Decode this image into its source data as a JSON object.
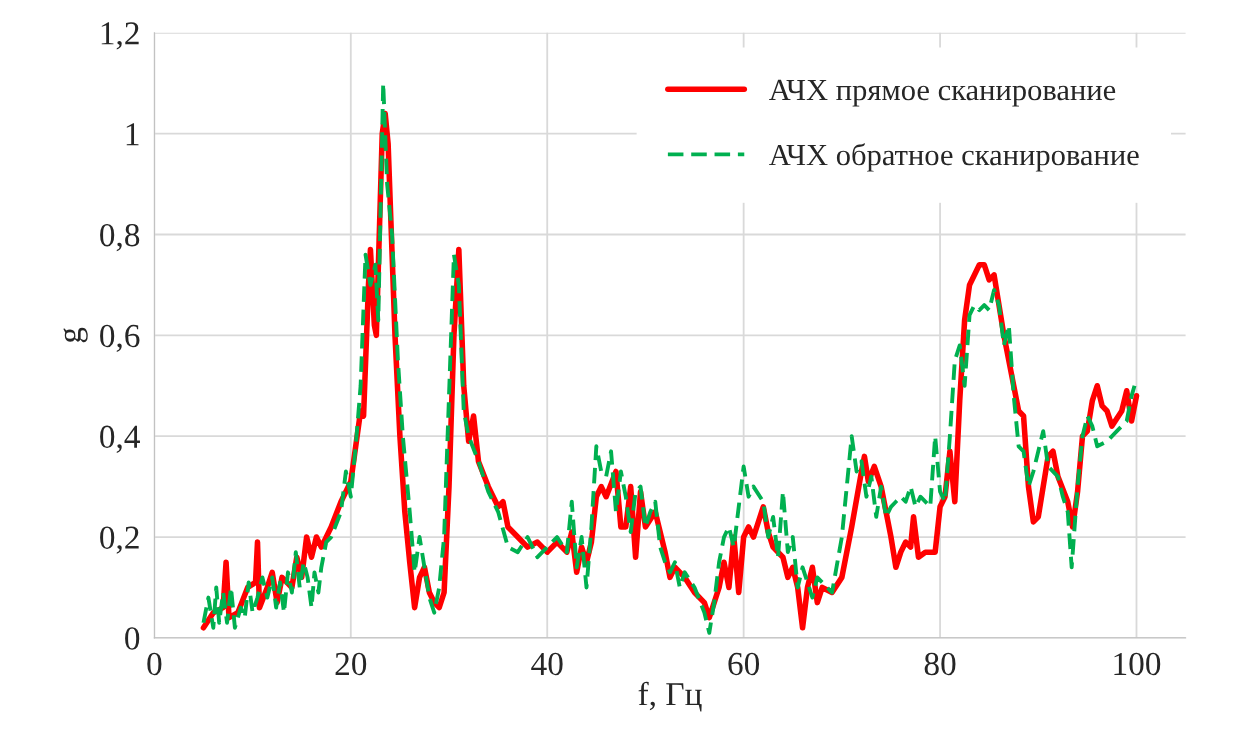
{
  "chart_data": {
    "type": "line",
    "xlabel": "f, Гц",
    "ylabel": "g",
    "xlim": [
      0,
      105
    ],
    "xticks": [
      0,
      20,
      40,
      60,
      80,
      100
    ],
    "ylim": [
      0,
      1.2
    ],
    "yticks": [
      0,
      {
        "value": 0.2,
        "label": "0,2"
      },
      {
        "value": 0.4,
        "label": "0,4"
      },
      {
        "value": 0.6,
        "label": "0,6"
      },
      {
        "value": 0.8,
        "label": "0,8"
      },
      1,
      {
        "value": 1.2,
        "label": "1,2"
      }
    ],
    "grid": true,
    "legend": "top right",
    "series": [
      {
        "name": "АЧХ прямое сканирование",
        "color": "#ff0000",
        "line_style": "solid",
        "x": [
          5,
          6,
          7,
          7.3,
          7.6,
          8.5,
          9.5,
          10.3,
          10.5,
          10.7,
          11.5,
          12,
          12.5,
          13,
          14,
          14.5,
          15,
          15.5,
          16,
          16.5,
          17,
          18,
          19,
          20,
          20.5,
          21,
          21.3,
          21.8,
          22,
          22.4,
          22.6,
          23.2,
          23.5,
          23.8,
          24.5,
          25,
          25.5,
          26,
          26.5,
          27,
          27.5,
          28,
          28.5,
          29,
          29.5,
          30,
          30.5,
          31,
          31.5,
          32,
          32.5,
          33,
          34,
          35,
          35.5,
          36,
          37,
          38,
          39,
          40,
          41,
          42,
          42.5,
          43,
          43.5,
          44,
          44.5,
          45,
          45.5,
          46,
          47,
          47.5,
          48,
          48.5,
          49,
          49.5,
          50,
          51,
          52,
          52.5,
          53,
          54,
          55,
          56,
          56.5,
          57,
          57.5,
          58,
          58.5,
          59,
          59.5,
          60,
          60.5,
          61,
          62,
          62.5,
          63,
          64,
          64.5,
          65,
          65.5,
          66,
          66.5,
          67,
          67.5,
          68,
          69,
          70,
          71,
          72,
          72.3,
          72.7,
          73.3,
          74,
          75,
          75.5,
          76,
          76.5,
          77,
          77.3,
          77.8,
          78.5,
          79.5,
          80,
          80.5,
          81,
          81.5,
          82,
          82.5,
          83,
          84,
          84.5,
          85,
          85.5,
          86.5,
          87.5,
          88,
          88.5,
          89,
          89.5,
          90,
          91,
          91.5,
          92,
          93,
          93.5,
          94,
          94.5,
          95,
          95.5,
          96,
          96.5,
          97,
          97.5,
          98.5,
          99,
          99.5,
          100
        ],
        "values": [
          0.02,
          0.05,
          0.06,
          0.15,
          0.04,
          0.05,
          0.1,
          0.11,
          0.19,
          0.06,
          0.1,
          0.13,
          0.07,
          0.12,
          0.1,
          0.16,
          0.12,
          0.2,
          0.16,
          0.2,
          0.18,
          0.22,
          0.27,
          0.31,
          0.38,
          0.45,
          0.44,
          0.7,
          0.77,
          0.62,
          0.6,
          1.0,
          1.04,
          0.98,
          0.6,
          0.4,
          0.25,
          0.15,
          0.06,
          0.12,
          0.14,
          0.09,
          0.07,
          0.06,
          0.09,
          0.3,
          0.6,
          0.77,
          0.5,
          0.39,
          0.44,
          0.35,
          0.3,
          0.26,
          0.27,
          0.22,
          0.2,
          0.18,
          0.19,
          0.17,
          0.19,
          0.17,
          0.21,
          0.13,
          0.18,
          0.15,
          0.19,
          0.28,
          0.3,
          0.28,
          0.33,
          0.22,
          0.22,
          0.3,
          0.16,
          0.29,
          0.22,
          0.25,
          0.17,
          0.12,
          0.14,
          0.12,
          0.09,
          0.07,
          0.04,
          0.07,
          0.1,
          0.15,
          0.1,
          0.2,
          0.09,
          0.2,
          0.22,
          0.2,
          0.26,
          0.21,
          0.18,
          0.16,
          0.12,
          0.14,
          0.1,
          0.02,
          0.1,
          0.14,
          0.07,
          0.1,
          0.09,
          0.12,
          0.22,
          0.33,
          0.36,
          0.31,
          0.34,
          0.3,
          0.2,
          0.14,
          0.17,
          0.19,
          0.18,
          0.24,
          0.16,
          0.17,
          0.17,
          0.26,
          0.28,
          0.37,
          0.27,
          0.47,
          0.63,
          0.7,
          0.74,
          0.74,
          0.71,
          0.72,
          0.6,
          0.5,
          0.45,
          0.44,
          0.3,
          0.23,
          0.24,
          0.36,
          0.37,
          0.32,
          0.27,
          0.22,
          0.29,
          0.4,
          0.41,
          0.47,
          0.5,
          0.46,
          0.45,
          0.42,
          0.45,
          0.49,
          0.43,
          0.48
        ]
      },
      {
        "name": "АЧХ обратное сканирование",
        "color": "#00b050",
        "line_style": "dashed",
        "x": [
          5,
          5.5,
          6,
          6.3,
          6.6,
          7,
          7.4,
          7.8,
          8.2,
          8.8,
          9.2,
          9.6,
          10,
          10.5,
          11,
          11.5,
          12,
          12.4,
          12.8,
          13.2,
          13.6,
          14,
          14.4,
          14.8,
          15.2,
          15.6,
          16,
          16.3,
          16.7,
          17,
          17.5,
          18,
          19,
          19.5,
          20,
          20.5,
          21,
          21.5,
          22,
          22.5,
          22.8,
          23.3,
          23.7,
          24.2,
          24.8,
          25.3,
          26,
          26.5,
          27,
          27.5,
          28,
          28.5,
          29,
          29.5,
          30,
          30.5,
          31,
          31.5,
          32,
          33,
          34,
          35,
          36,
          37,
          38,
          39,
          40,
          41,
          42,
          42.5,
          43,
          43.5,
          44,
          44.5,
          45,
          45.5,
          46,
          46.5,
          47,
          47.5,
          48,
          48.5,
          49,
          49.5,
          50,
          50.5,
          51,
          51.5,
          52,
          52.5,
          53,
          53.5,
          54,
          55,
          56,
          56.5,
          57,
          57.5,
          58,
          58.5,
          59,
          60,
          60.5,
          61,
          62,
          62.5,
          63,
          63.5,
          64,
          64.5,
          65,
          65.5,
          66,
          67,
          67.5,
          68,
          69,
          70,
          71,
          71.5,
          72,
          72.5,
          73,
          73.5,
          74,
          74.5,
          75,
          75.5,
          76,
          76.5,
          77,
          77.5,
          78,
          79,
          79.5,
          80,
          80.5,
          81,
          81.5,
          82,
          82.5,
          83,
          83.5,
          84,
          84.5,
          85,
          85.5,
          86,
          86.5,
          87,
          87.5,
          88,
          88.5,
          89,
          89.5,
          90.5,
          91,
          92,
          92.5,
          93,
          93.4,
          94,
          94.5,
          95,
          95.5,
          96,
          97,
          98,
          99,
          99.5,
          99.8
        ],
        "values": [
          0.03,
          0.08,
          0.02,
          0.1,
          0.03,
          0.09,
          0.03,
          0.1,
          0.02,
          0.06,
          0.04,
          0.11,
          0.05,
          0.08,
          0.12,
          0.08,
          0.12,
          0.06,
          0.11,
          0.05,
          0.13,
          0.09,
          0.17,
          0.1,
          0.15,
          0.12,
          0.06,
          0.13,
          0.09,
          0.14,
          0.19,
          0.2,
          0.25,
          0.33,
          0.28,
          0.38,
          0.5,
          0.76,
          0.7,
          0.74,
          0.63,
          1.1,
          0.9,
          0.8,
          0.55,
          0.4,
          0.25,
          0.13,
          0.2,
          0.14,
          0.08,
          0.05,
          0.1,
          0.2,
          0.48,
          0.76,
          0.7,
          0.45,
          0.4,
          0.35,
          0.29,
          0.25,
          0.18,
          0.17,
          0.2,
          0.16,
          0.18,
          0.2,
          0.17,
          0.27,
          0.14,
          0.2,
          0.1,
          0.22,
          0.38,
          0.33,
          0.32,
          0.37,
          0.25,
          0.33,
          0.28,
          0.21,
          0.29,
          0.3,
          0.22,
          0.25,
          0.27,
          0.18,
          0.15,
          0.13,
          0.15,
          0.1,
          0.13,
          0.1,
          0.05,
          0.01,
          0.07,
          0.15,
          0.2,
          0.22,
          0.18,
          0.34,
          0.28,
          0.3,
          0.27,
          0.2,
          0.24,
          0.16,
          0.29,
          0.17,
          0.2,
          0.1,
          0.14,
          0.08,
          0.12,
          0.11,
          0.09,
          0.2,
          0.4,
          0.33,
          0.35,
          0.28,
          0.32,
          0.24,
          0.3,
          0.24,
          0.26,
          0.27,
          0.28,
          0.27,
          0.3,
          0.26,
          0.28,
          0.26,
          0.4,
          0.29,
          0.27,
          0.4,
          0.55,
          0.58,
          0.5,
          0.64,
          0.66,
          0.65,
          0.66,
          0.65,
          0.69,
          0.66,
          0.58,
          0.62,
          0.48,
          0.38,
          0.37,
          0.3,
          0.33,
          0.41,
          0.34,
          0.32,
          0.28,
          0.25,
          0.14,
          0.3,
          0.4,
          0.44,
          0.42,
          0.38,
          0.39,
          0.41,
          0.43,
          0.48,
          0.5
        ]
      }
    ]
  }
}
